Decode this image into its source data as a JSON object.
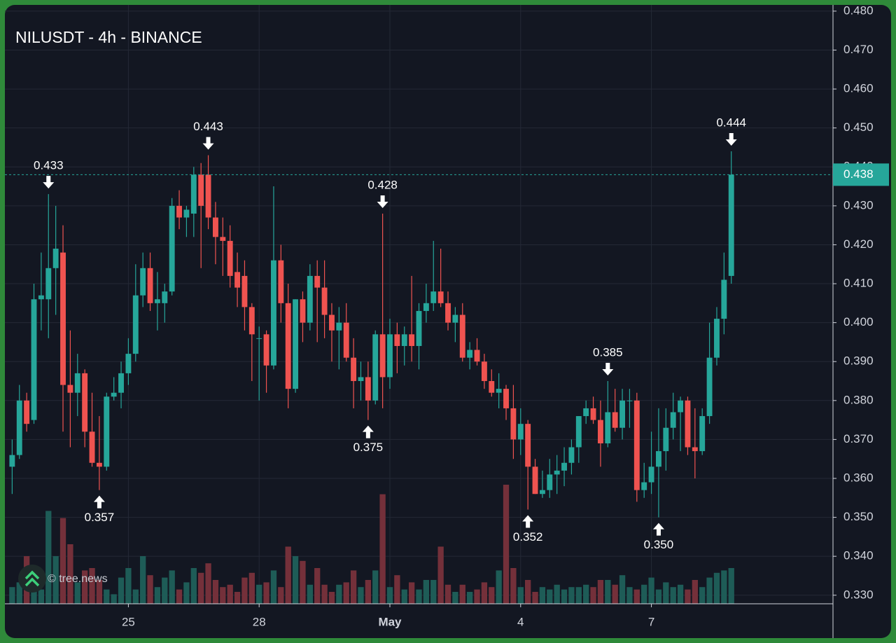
{
  "chart_data": {
    "type": "candlestick",
    "title": "NILUSDT - 4h - BINANCE",
    "watermark": "© tree.news",
    "up_color": "#26a69a",
    "down_color": "#ef5350",
    "volume_up_color": "#1e5c57",
    "volume_down_color": "#74303a",
    "open": [
      0.363,
      0.366,
      0.38,
      0.375,
      0.406,
      0.406,
      0.414,
      0.418,
      0.384,
      0.382,
      0.387,
      0.372,
      0.364,
      0.363,
      0.381,
      0.382,
      0.387,
      0.392,
      0.407,
      0.414,
      0.405,
      0.405,
      0.408,
      0.43,
      0.427,
      0.428,
      0.438,
      0.438,
      0.427,
      0.422,
      0.421,
      0.413,
      0.412,
      0.404,
      0.396,
      0.397,
      0.389,
      0.416,
      0.405,
      0.383,
      0.406,
      0.4,
      0.412,
      0.409,
      0.402,
      0.398,
      0.4,
      0.391,
      0.385,
      0.386,
      0.38,
      0.397,
      0.386,
      0.397,
      0.394,
      0.397,
      0.394,
      0.403,
      0.405,
      0.408,
      0.405,
      0.4,
      0.402,
      0.391,
      0.393,
      0.39,
      0.385,
      0.382,
      0.383,
      0.378,
      0.37,
      0.374,
      0.363,
      0.356,
      0.357,
      0.361,
      0.362,
      0.364,
      0.368,
      0.376,
      0.378,
      0.375,
      0.369,
      0.377,
      0.373,
      0.38,
      0.38,
      0.357,
      0.359,
      0.363,
      0.367,
      0.373,
      0.377,
      0.38,
      0.368,
      0.367,
      0.376,
      0.391,
      0.401,
      0.412
    ],
    "high": [
      0.37,
      0.384,
      0.382,
      0.41,
      0.418,
      0.433,
      0.43,
      0.425,
      0.398,
      0.392,
      0.388,
      0.382,
      0.376,
      0.382,
      0.386,
      0.39,
      0.396,
      0.415,
      0.418,
      0.418,
      0.413,
      0.41,
      0.432,
      0.434,
      0.43,
      0.44,
      0.441,
      0.443,
      0.431,
      0.427,
      0.425,
      0.418,
      0.416,
      0.405,
      0.399,
      0.398,
      0.435,
      0.42,
      0.41,
      0.406,
      0.408,
      0.415,
      0.416,
      0.416,
      0.405,
      0.404,
      0.405,
      0.396,
      0.39,
      0.39,
      0.398,
      0.428,
      0.401,
      0.4,
      0.399,
      0.412,
      0.405,
      0.41,
      0.421,
      0.419,
      0.408,
      0.404,
      0.405,
      0.395,
      0.396,
      0.392,
      0.388,
      0.387,
      0.384,
      0.384,
      0.378,
      0.375,
      0.365,
      0.362,
      0.365,
      0.366,
      0.368,
      0.37,
      0.376,
      0.38,
      0.381,
      0.38,
      0.385,
      0.383,
      0.383,
      0.383,
      0.382,
      0.364,
      0.372,
      0.378,
      0.378,
      0.382,
      0.381,
      0.381,
      0.378,
      0.378,
      0.4,
      0.404,
      0.418,
      0.444
    ],
    "low": [
      0.356,
      0.365,
      0.372,
      0.374,
      0.398,
      0.396,
      0.402,
      0.372,
      0.368,
      0.376,
      0.368,
      0.363,
      0.357,
      0.362,
      0.38,
      0.378,
      0.384,
      0.39,
      0.404,
      0.403,
      0.398,
      0.4,
      0.407,
      0.424,
      0.422,
      0.422,
      0.414,
      0.424,
      0.415,
      0.412,
      0.409,
      0.404,
      0.398,
      0.385,
      0.38,
      0.382,
      0.388,
      0.4,
      0.378,
      0.382,
      0.395,
      0.398,
      0.395,
      0.396,
      0.39,
      0.388,
      0.39,
      0.378,
      0.38,
      0.375,
      0.379,
      0.378,
      0.383,
      0.387,
      0.389,
      0.39,
      0.388,
      0.4,
      0.403,
      0.404,
      0.398,
      0.395,
      0.39,
      0.388,
      0.389,
      0.383,
      0.381,
      0.378,
      0.375,
      0.365,
      0.366,
      0.352,
      0.356,
      0.355,
      0.355,
      0.356,
      0.358,
      0.361,
      0.364,
      0.374,
      0.374,
      0.363,
      0.368,
      0.372,
      0.37,
      0.373,
      0.354,
      0.355,
      0.356,
      0.35,
      0.362,
      0.37,
      0.367,
      0.366,
      0.36,
      0.366,
      0.374,
      0.389,
      0.397,
      0.41
    ],
    "close": [
      0.366,
      0.38,
      0.374,
      0.406,
      0.407,
      0.414,
      0.419,
      0.384,
      0.382,
      0.387,
      0.372,
      0.364,
      0.363,
      0.381,
      0.382,
      0.387,
      0.392,
      0.407,
      0.414,
      0.405,
      0.406,
      0.408,
      0.43,
      0.427,
      0.429,
      0.438,
      0.43,
      0.427,
      0.422,
      0.421,
      0.412,
      0.409,
      0.404,
      0.397,
      0.396,
      0.389,
      0.416,
      0.405,
      0.383,
      0.406,
      0.4,
      0.412,
      0.409,
      0.402,
      0.398,
      0.4,
      0.391,
      0.385,
      0.386,
      0.38,
      0.397,
      0.386,
      0.397,
      0.394,
      0.397,
      0.394,
      0.403,
      0.405,
      0.408,
      0.405,
      0.4,
      0.402,
      0.391,
      0.393,
      0.39,
      0.385,
      0.382,
      0.383,
      0.378,
      0.37,
      0.374,
      0.363,
      0.356,
      0.357,
      0.361,
      0.362,
      0.364,
      0.368,
      0.376,
      0.378,
      0.375,
      0.369,
      0.377,
      0.373,
      0.38,
      0.38,
      0.357,
      0.359,
      0.363,
      0.367,
      0.373,
      0.377,
      0.38,
      0.368,
      0.367,
      0.376,
      0.391,
      0.401,
      0.411,
      0.438
    ],
    "volume": [
      14,
      18,
      40,
      22,
      12,
      78,
      40,
      72,
      50,
      18,
      28,
      30,
      20,
      12,
      8,
      22,
      30,
      12,
      40,
      24,
      14,
      22,
      28,
      12,
      18,
      30,
      26,
      34,
      20,
      14,
      16,
      10,
      22,
      26,
      16,
      18,
      28,
      14,
      48,
      40,
      36,
      16,
      30,
      16,
      10,
      16,
      18,
      28,
      14,
      20,
      28,
      92,
      14,
      24,
      12,
      18,
      12,
      20,
      20,
      48,
      16,
      10,
      16,
      10,
      12,
      18,
      14,
      28,
      100,
      30,
      14,
      20,
      10,
      14,
      12,
      16,
      12,
      14,
      14,
      16,
      14,
      20,
      20,
      16,
      24,
      14,
      12,
      16,
      22,
      12,
      18,
      14,
      16,
      12,
      20,
      14,
      22,
      26,
      28,
      30
    ],
    "xlim": [
      -1,
      113
    ],
    "xticks": [
      {
        "value": 16,
        "label": "25"
      },
      {
        "value": 34,
        "label": "28"
      },
      {
        "value": 52,
        "label": "May"
      },
      {
        "value": 70,
        "label": "4"
      },
      {
        "value": 88,
        "label": "7"
      }
    ],
    "ylim": [
      0.3278,
      0.4816
    ],
    "yticks": [
      {
        "value": 0.33,
        "label": "0.330"
      },
      {
        "value": 0.34,
        "label": "0.340"
      },
      {
        "value": 0.35,
        "label": "0.350"
      },
      {
        "value": 0.36,
        "label": "0.360"
      },
      {
        "value": 0.37,
        "label": "0.370"
      },
      {
        "value": 0.38,
        "label": "0.380"
      },
      {
        "value": 0.39,
        "label": "0.390"
      },
      {
        "value": 0.4,
        "label": "0.400"
      },
      {
        "value": 0.41,
        "label": "0.410"
      },
      {
        "value": 0.42,
        "label": "0.420"
      },
      {
        "value": 0.43,
        "label": "0.430"
      },
      {
        "value": 0.44,
        "label": "0.440"
      },
      {
        "value": 0.45,
        "label": "0.450"
      },
      {
        "value": 0.46,
        "label": "0.460"
      },
      {
        "value": 0.47,
        "label": "0.470"
      },
      {
        "value": 0.48,
        "label": "0.480"
      }
    ],
    "grid": true,
    "last_price": {
      "value": 0.438,
      "label": "0.438"
    },
    "annotations": [
      {
        "x": 5,
        "value": 0.433,
        "label": "0.433"
      },
      {
        "x": 12,
        "value": 0.357,
        "label": "0.357"
      },
      {
        "x": 27,
        "value": 0.443,
        "label": "0.443"
      },
      {
        "x": 49,
        "value": 0.375,
        "label": "0.375"
      },
      {
        "x": 51,
        "value": 0.428,
        "label": "0.428"
      },
      {
        "x": 71,
        "value": 0.352,
        "label": "0.352"
      },
      {
        "x": 82,
        "value": 0.385,
        "label": "0.385"
      },
      {
        "x": 89,
        "value": 0.35,
        "label": "0.350"
      },
      {
        "x": 99,
        "value": 0.444,
        "label": "0.444"
      }
    ]
  }
}
